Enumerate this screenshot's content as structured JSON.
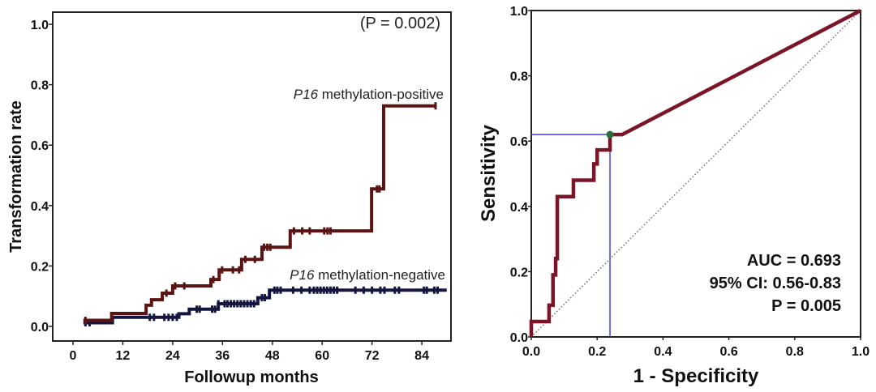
{
  "chart_data": [
    {
      "type": "line",
      "subtype": "kaplan-meier-step",
      "title": "",
      "xlabel": "Followup months",
      "ylabel": "Transformation rate",
      "xlim": [
        -5,
        90
      ],
      "ylim": [
        -0.05,
        1.05
      ],
      "xticks": [
        0,
        12,
        24,
        36,
        48,
        60,
        72,
        84
      ],
      "xtick_labels": [
        "0",
        "12",
        "24",
        "36",
        "48",
        "60",
        "72",
        "84"
      ],
      "yticks": [
        0.0,
        0.2,
        0.4,
        0.6,
        0.8,
        1.0
      ],
      "ytick_labels": [
        "0.0",
        "0.2",
        "0.4",
        "0.6",
        "0.8",
        "1.0"
      ],
      "grid": false,
      "annotation": "(P = 0.002)",
      "series": [
        {
          "name": "P16 methylation-positive",
          "label_italic": "P16",
          "label_rest": " methylation-positive",
          "color": "#5a1414",
          "steps": [
            [
              2.5,
              0.02
            ],
            [
              9.3,
              0.043
            ],
            [
              17.6,
              0.07
            ],
            [
              18.9,
              0.088
            ],
            [
              21.5,
              0.11
            ],
            [
              24.0,
              0.134
            ],
            [
              33.2,
              0.155
            ],
            [
              35.2,
              0.187
            ],
            [
              40.6,
              0.222
            ],
            [
              45.5,
              0.262
            ],
            [
              52.3,
              0.316
            ],
            [
              71.9,
              0.455
            ],
            [
              74.8,
              0.73
            ]
          ],
          "end_x": 87.3,
          "censored": [
            3,
            22.5,
            24.6,
            26.8,
            33.8,
            35.9,
            38.5,
            40.0,
            41.5,
            43.8,
            46.0,
            46.8,
            47.5,
            53.2,
            55.2,
            57.0,
            60.5,
            61.3,
            62.0,
            73.2,
            73.8,
            87.3
          ]
        },
        {
          "name": "P16 methylation-negative",
          "label_italic": "P16",
          "label_rest": " methylation-negative",
          "color": "#14163f",
          "steps": [
            [
              2.5,
              0.012
            ],
            [
              9.5,
              0.03
            ],
            [
              25.5,
              0.042
            ],
            [
              28.0,
              0.057
            ],
            [
              35.0,
              0.075
            ],
            [
              44.5,
              0.095
            ],
            [
              47.3,
              0.12
            ]
          ],
          "end_x": 90,
          "censored": [
            3,
            4,
            18.5,
            19.5,
            22,
            23,
            24,
            25,
            29.8,
            30.5,
            33.5,
            34.2,
            35,
            36.5,
            37.2,
            38,
            38.8,
            39.6,
            40.4,
            41.2,
            42,
            42.8,
            43.6,
            45.5,
            46.2,
            48.5,
            49.2,
            50,
            53,
            55,
            57,
            58,
            58.8,
            59.6,
            60.4,
            61.2,
            62,
            62.8,
            63.6,
            68,
            70,
            72,
            74,
            75,
            77.5,
            78.5,
            84.5,
            85.2,
            87,
            87.8
          ]
        }
      ]
    },
    {
      "type": "line",
      "subtype": "roc-curve",
      "title": "",
      "xlabel": "1 - Specificity",
      "ylabel": "Sensitivity",
      "xlim": [
        0,
        1
      ],
      "ylim": [
        0,
        1
      ],
      "xticks": [
        0.0,
        0.2,
        0.4,
        0.6,
        0.8,
        1.0
      ],
      "xtick_labels": [
        "0.0",
        "0.2",
        "0.4",
        "0.6",
        "0.8",
        "1.0"
      ],
      "yticks": [
        0.0,
        0.2,
        0.4,
        0.6,
        0.8,
        1.0
      ],
      "ytick_labels": [
        "0.0",
        "0.2",
        "0.4",
        "0.6",
        "0.8",
        "1.0"
      ],
      "grid": false,
      "series": [
        {
          "name": "ROC",
          "color": "#7a1426",
          "points": [
            [
              0,
              0
            ],
            [
              0,
              0.047
            ],
            [
              0.054,
              0.047
            ],
            [
              0.054,
              0.097
            ],
            [
              0.066,
              0.097
            ],
            [
              0.066,
              0.19
            ],
            [
              0.074,
              0.19
            ],
            [
              0.074,
              0.24
            ],
            [
              0.079,
              0.24
            ],
            [
              0.079,
              0.43
            ],
            [
              0.128,
              0.43
            ],
            [
              0.128,
              0.48
            ],
            [
              0.19,
              0.48
            ],
            [
              0.19,
              0.53
            ],
            [
              0.2,
              0.53
            ],
            [
              0.2,
              0.573
            ],
            [
              0.239,
              0.573
            ],
            [
              0.239,
              0.62
            ],
            [
              0.276,
              0.62
            ],
            [
              1.0,
              1.0
            ]
          ]
        },
        {
          "name": "Reference (chance)",
          "color": "#777777",
          "style": "dotted",
          "points": [
            [
              0,
              0
            ],
            [
              1,
              1
            ]
          ]
        }
      ],
      "cutoff_point": {
        "fpr": 0.239,
        "tpr": 0.62,
        "marker_color": "#2e6b3a",
        "guide_color": "#4040e0"
      },
      "stats": [
        "AUC = 0.693",
        "95% CI: 0.56-0.83",
        "P = 0.005"
      ]
    }
  ]
}
